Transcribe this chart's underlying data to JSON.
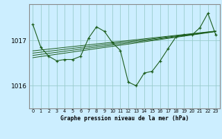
{
  "title": "Graphe pression niveau de la mer (hPa)",
  "bg_color": "#cceeff",
  "line_color": "#1a5c1a",
  "grid_color": "#99cccc",
  "xlabel_color": "#000000",
  "xlim": [
    -0.5,
    23.5
  ],
  "ylim": [
    1015.5,
    1017.8
  ],
  "yticks": [
    1016,
    1017
  ],
  "xticks": [
    0,
    1,
    2,
    3,
    4,
    5,
    6,
    7,
    8,
    9,
    10,
    11,
    12,
    13,
    14,
    15,
    16,
    17,
    18,
    19,
    20,
    21,
    22,
    23
  ],
  "pressure_data": [
    1017.35,
    1016.85,
    1016.65,
    1016.55,
    1016.58,
    1016.58,
    1016.65,
    1017.05,
    1017.3,
    1017.2,
    1016.95,
    1016.78,
    1016.08,
    1016.0,
    1016.28,
    1016.32,
    1016.55,
    1016.82,
    1017.08,
    1017.12,
    1017.12,
    1017.28,
    1017.6,
    1017.12
  ],
  "trend1": [
    1016.62,
    1016.645,
    1016.67,
    1016.695,
    1016.72,
    1016.745,
    1016.77,
    1016.795,
    1016.82,
    1016.845,
    1016.87,
    1016.895,
    1016.92,
    1016.945,
    1016.97,
    1016.995,
    1017.02,
    1017.045,
    1017.07,
    1017.095,
    1017.12,
    1017.145,
    1017.17,
    1017.195
  ],
  "trend2": [
    1016.67,
    1016.693,
    1016.716,
    1016.739,
    1016.762,
    1016.785,
    1016.808,
    1016.831,
    1016.854,
    1016.877,
    1016.9,
    1016.923,
    1016.946,
    1016.969,
    1016.992,
    1017.015,
    1017.038,
    1017.061,
    1017.084,
    1017.107,
    1017.13,
    1017.153,
    1017.176,
    1017.199
  ],
  "trend3": [
    1016.72,
    1016.741,
    1016.762,
    1016.783,
    1016.804,
    1016.825,
    1016.846,
    1016.867,
    1016.888,
    1016.909,
    1016.93,
    1016.951,
    1016.972,
    1016.993,
    1017.014,
    1017.035,
    1017.056,
    1017.077,
    1017.098,
    1017.119,
    1017.14,
    1017.161,
    1017.182,
    1017.203
  ],
  "trend4": [
    1016.77,
    1016.789,
    1016.808,
    1016.827,
    1016.846,
    1016.865,
    1016.884,
    1016.903,
    1016.922,
    1016.941,
    1016.96,
    1016.979,
    1016.998,
    1017.017,
    1017.036,
    1017.055,
    1017.074,
    1017.093,
    1017.112,
    1017.131,
    1017.15,
    1017.169,
    1017.188,
    1017.207
  ]
}
